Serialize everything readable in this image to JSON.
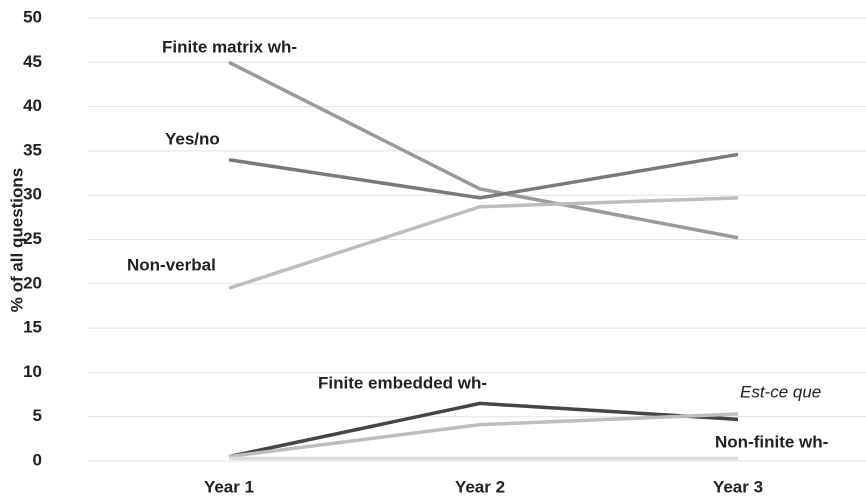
{
  "chart_data": {
    "type": "line",
    "y_label": "% of all questions",
    "categories": [
      "Year 1",
      "Year 2",
      "Year 3"
    ],
    "series": [
      {
        "name": "Finite matrix wh-",
        "color": "#9a9a9a",
        "values": [
          45,
          30.7,
          25.2
        ]
      },
      {
        "name": "Yes/no",
        "color": "#7a7a7a",
        "values": [
          34,
          29.7,
          34.6
        ]
      },
      {
        "name": "Non-verbal",
        "color": "#bdbdbd",
        "values": [
          19.5,
          28.7,
          29.7
        ]
      },
      {
        "name": "Finite embedded wh-",
        "color": "#454545",
        "values": [
          0.5,
          6.5,
          4.7
        ]
      },
      {
        "name": "Est-ce que",
        "color": "#bdbdbd",
        "values": [
          0.5,
          4.1,
          5.3
        ],
        "label_italic": true
      },
      {
        "name": "Non-finite wh-",
        "color": "#dcdcdc",
        "values": [
          0.3,
          0.3,
          0.3
        ]
      }
    ],
    "ylim": [
      0,
      50
    ],
    "yticks": [
      0,
      5,
      10,
      15,
      20,
      25,
      30,
      35,
      40,
      45,
      50
    ],
    "grid": true
  }
}
